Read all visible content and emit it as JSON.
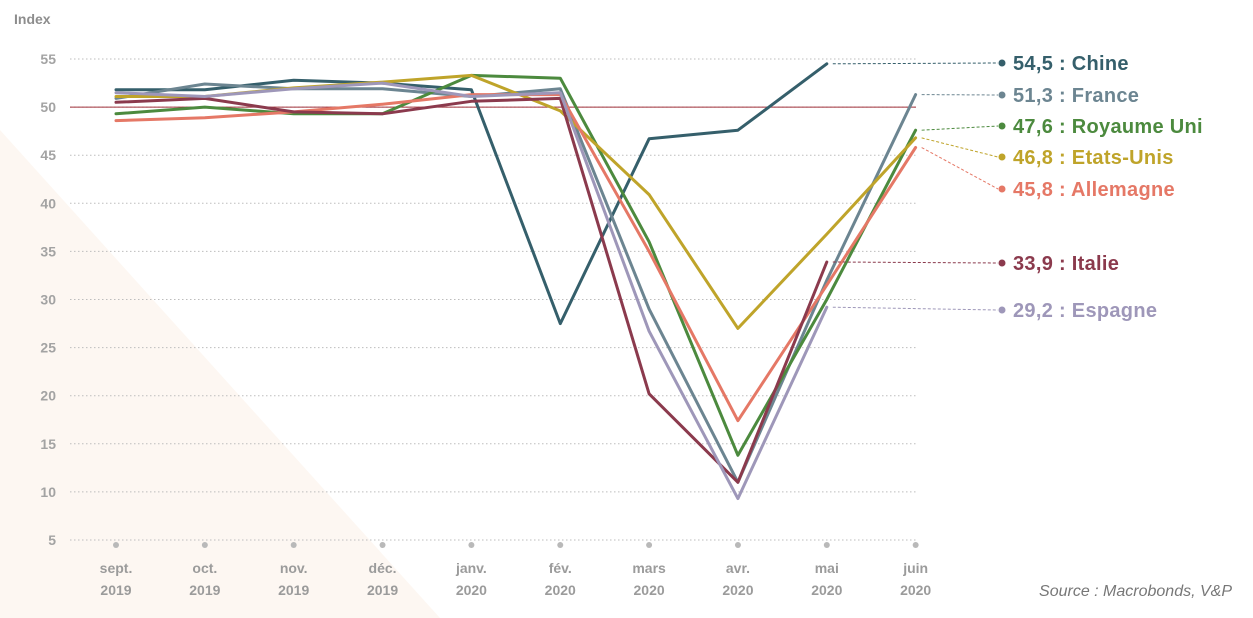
{
  "chart_data": {
    "type": "line",
    "ylabel": "Index",
    "ylim": [
      5,
      55
    ],
    "yticks": [
      5,
      10,
      15,
      20,
      25,
      30,
      35,
      40,
      45,
      50,
      55
    ],
    "reference_line": 50,
    "grid": "horizontal dotted",
    "categories": [
      [
        "sept.",
        "2019"
      ],
      [
        "oct.",
        "2019"
      ],
      [
        "nov.",
        "2019"
      ],
      [
        "déc.",
        "2019"
      ],
      [
        "janv.",
        "2020"
      ],
      [
        "fév.",
        "2020"
      ],
      [
        "mars",
        "2020"
      ],
      [
        "avr.",
        "2020"
      ],
      [
        "mai",
        "2020"
      ],
      [
        "juin",
        "2020"
      ]
    ],
    "series": [
      {
        "name": "Chine",
        "label": "54,5 : Chine",
        "color": "#355f6b",
        "values": [
          51.8,
          51.8,
          52.8,
          52.5,
          51.8,
          27.5,
          46.7,
          47.6,
          54.5,
          null
        ]
      },
      {
        "name": "France",
        "label": "51,3 : France",
        "color": "#6c8591",
        "values": [
          50.9,
          52.4,
          51.9,
          51.9,
          51.1,
          51.9,
          29.0,
          11.0,
          32.0,
          51.3
        ]
      },
      {
        "name": "Royaume Uni",
        "label": "47,6 : Royaume Uni",
        "color": "#4c8a3e",
        "values": [
          49.3,
          50.0,
          49.3,
          49.3,
          53.3,
          53.0,
          36.0,
          13.8,
          30.0,
          47.6
        ]
      },
      {
        "name": "Etats-Unis",
        "label": "46,8 : Etats-Unis",
        "color": "#bfa42a",
        "values": [
          51.1,
          51.1,
          52.0,
          52.6,
          53.3,
          49.6,
          40.9,
          27.0,
          36.8,
          46.8
        ]
      },
      {
        "name": "Allemagne",
        "label": "45,8 : Allemagne",
        "color": "#e57866",
        "values": [
          48.6,
          48.9,
          49.5,
          50.3,
          51.3,
          51.3,
          35.0,
          17.4,
          31.5,
          45.8
        ]
      },
      {
        "name": "Italie",
        "label": "33,9 : Italie",
        "color": "#8b3a4d",
        "values": [
          50.5,
          50.9,
          49.5,
          49.3,
          50.6,
          50.9,
          20.2,
          11.0,
          33.9,
          null
        ]
      },
      {
        "name": "Espagne",
        "label": "29,2 : Espagne",
        "color": "#9e97b9",
        "values": [
          51.5,
          51.1,
          51.9,
          52.5,
          51.1,
          51.5,
          26.7,
          9.3,
          29.2,
          null
        ]
      }
    ]
  },
  "source": "Source : Macrobonds, V&P"
}
